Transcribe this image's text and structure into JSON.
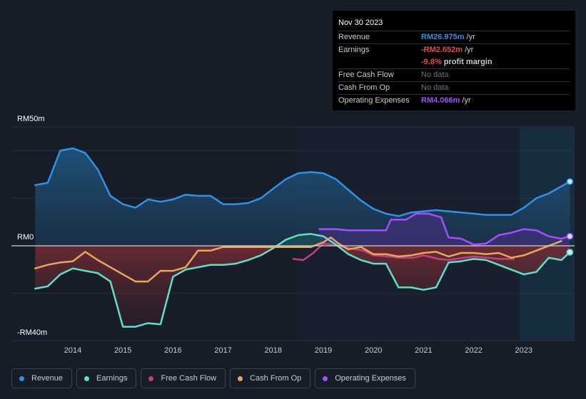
{
  "tooltip": {
    "date": "Nov 30 2023",
    "rows": [
      {
        "label": "Revenue",
        "value": "RM26.975m",
        "unit": "/yr",
        "color": "#2e93e6"
      },
      {
        "label": "Earnings",
        "value": "-RM2.652m",
        "unit": "/yr",
        "color": "#e8474e"
      },
      {
        "label": "",
        "value": "-9.8%",
        "unit": "profit margin",
        "color": "#e8474e"
      },
      {
        "label": "Free Cash Flow",
        "value": "No data",
        "unit": "",
        "color": "#6c727c"
      },
      {
        "label": "Cash From Op",
        "value": "No data",
        "unit": "",
        "color": "#6c727c"
      },
      {
        "label": "Operating Expenses",
        "value": "RM4.066m",
        "unit": "/yr",
        "color": "#a64dff"
      }
    ]
  },
  "legend": [
    {
      "label": "Revenue",
      "color": "#2e93e6"
    },
    {
      "label": "Earnings",
      "color": "#5fe0c8"
    },
    {
      "label": "Free Cash Flow",
      "color": "#c4407c"
    },
    {
      "label": "Cash From Op",
      "color": "#e8a85a"
    },
    {
      "label": "Operating Expenses",
      "color": "#a64dff"
    }
  ],
  "chart_data": {
    "type": "area",
    "x_ticks": [
      "2014",
      "2015",
      "2016",
      "2017",
      "2018",
      "2019",
      "2020",
      "2021",
      "2022",
      "2023"
    ],
    "y_tick_labels": [
      "RM50m",
      "RM0",
      "-RM40m"
    ],
    "ylim": [
      -40,
      50
    ],
    "grid": true,
    "past_data_shading_from": 2022.92,
    "series": [
      {
        "name": "Revenue",
        "color": "#2e93e6",
        "points": [
          [
            2013.25,
            25.5
          ],
          [
            2013.5,
            26.5
          ],
          [
            2013.75,
            40
          ],
          [
            2014.0,
            41
          ],
          [
            2014.25,
            39
          ],
          [
            2014.5,
            32
          ],
          [
            2014.75,
            21
          ],
          [
            2015.0,
            17.5
          ],
          [
            2015.25,
            16
          ],
          [
            2015.5,
            19.5
          ],
          [
            2015.75,
            18.5
          ],
          [
            2016.0,
            19.5
          ],
          [
            2016.25,
            21.5
          ],
          [
            2016.5,
            21
          ],
          [
            2016.75,
            21
          ],
          [
            2017.0,
            17.5
          ],
          [
            2017.25,
            17.5
          ],
          [
            2017.5,
            18
          ],
          [
            2017.75,
            20
          ],
          [
            2018.0,
            24
          ],
          [
            2018.25,
            28
          ],
          [
            2018.5,
            30.5
          ],
          [
            2018.75,
            31
          ],
          [
            2019.0,
            30.5
          ],
          [
            2019.25,
            28
          ],
          [
            2019.5,
            23.5
          ],
          [
            2019.75,
            19
          ],
          [
            2020.0,
            15.5
          ],
          [
            2020.25,
            13.5
          ],
          [
            2020.5,
            12.5
          ],
          [
            2020.75,
            14
          ],
          [
            2021.0,
            14.5
          ],
          [
            2021.25,
            15
          ],
          [
            2021.5,
            14.5
          ],
          [
            2021.75,
            14
          ],
          [
            2022.0,
            13.5
          ],
          [
            2022.25,
            13
          ],
          [
            2022.5,
            13
          ],
          [
            2022.75,
            13
          ],
          [
            2023.0,
            16
          ],
          [
            2023.25,
            20
          ],
          [
            2023.5,
            22
          ],
          [
            2023.75,
            25
          ],
          [
            2023.92,
            27
          ]
        ]
      },
      {
        "name": "Earnings",
        "color": "#5fe0c8",
        "points": [
          [
            2013.25,
            -18
          ],
          [
            2013.5,
            -17
          ],
          [
            2013.75,
            -12
          ],
          [
            2014.0,
            -9.5
          ],
          [
            2014.25,
            -10.5
          ],
          [
            2014.5,
            -11.5
          ],
          [
            2014.75,
            -15
          ],
          [
            2015.0,
            -34
          ],
          [
            2015.25,
            -34
          ],
          [
            2015.5,
            -32.5
          ],
          [
            2015.75,
            -33
          ],
          [
            2016.0,
            -13
          ],
          [
            2016.25,
            -10
          ],
          [
            2016.5,
            -9
          ],
          [
            2016.75,
            -8
          ],
          [
            2017.0,
            -8
          ],
          [
            2017.25,
            -7.5
          ],
          [
            2017.5,
            -6
          ],
          [
            2017.75,
            -4
          ],
          [
            2018.0,
            -1
          ],
          [
            2018.25,
            2.5
          ],
          [
            2018.5,
            4.5
          ],
          [
            2018.75,
            5
          ],
          [
            2019.0,
            4
          ],
          [
            2019.25,
            0.5
          ],
          [
            2019.5,
            -3.5
          ],
          [
            2019.75,
            -6
          ],
          [
            2020.0,
            -7.5
          ],
          [
            2020.25,
            -7.5
          ],
          [
            2020.5,
            -17.5
          ],
          [
            2020.75,
            -17.5
          ],
          [
            2021.0,
            -18.5
          ],
          [
            2021.25,
            -17.5
          ],
          [
            2021.5,
            -7
          ],
          [
            2021.75,
            -6.5
          ],
          [
            2022.0,
            -5.5
          ],
          [
            2022.25,
            -6
          ],
          [
            2022.5,
            -8
          ],
          [
            2022.75,
            -10
          ],
          [
            2023.0,
            -12
          ],
          [
            2023.25,
            -11
          ],
          [
            2023.5,
            -5
          ],
          [
            2023.75,
            -6
          ],
          [
            2023.92,
            -2.7
          ]
        ]
      },
      {
        "name": "Free Cash Flow",
        "color": "#c4407c",
        "points": [
          [
            2018.4,
            -5.5
          ],
          [
            2018.6,
            -6
          ],
          [
            2018.8,
            -3
          ],
          [
            2019.0,
            1
          ],
          [
            2019.3,
            0
          ],
          [
            2019.5,
            -1
          ],
          [
            2019.8,
            -2
          ],
          [
            2020.0,
            -4
          ],
          [
            2020.3,
            -4.5
          ],
          [
            2020.5,
            -5
          ],
          [
            2020.8,
            -5
          ],
          [
            2021.0,
            -4
          ],
          [
            2021.3,
            -5.5
          ],
          [
            2021.5,
            -6
          ],
          [
            2021.8,
            -5
          ],
          [
            2022.0,
            -4.5
          ],
          [
            2022.3,
            -5
          ],
          [
            2022.5,
            -5.5
          ],
          [
            2022.8,
            -5.5
          ]
        ]
      },
      {
        "name": "Cash From Op",
        "color": "#e8a85a",
        "points": [
          [
            2013.25,
            -9.5
          ],
          [
            2013.5,
            -8
          ],
          [
            2013.75,
            -7
          ],
          [
            2014.0,
            -6.5
          ],
          [
            2014.25,
            -2.5
          ],
          [
            2014.5,
            -6
          ],
          [
            2014.75,
            -9
          ],
          [
            2015.0,
            -12
          ],
          [
            2015.25,
            -15
          ],
          [
            2015.5,
            -15
          ],
          [
            2015.75,
            -10.5
          ],
          [
            2016.0,
            -10.5
          ],
          [
            2016.25,
            -9
          ],
          [
            2016.5,
            -2
          ],
          [
            2016.75,
            -2
          ],
          [
            2017.0,
            -0.5
          ],
          [
            2017.25,
            -0.5
          ],
          [
            2017.5,
            -0.5
          ],
          [
            2017.75,
            -0.5
          ],
          [
            2018.0,
            -0.5
          ],
          [
            2018.25,
            -0.5
          ],
          [
            2018.5,
            -0.5
          ],
          [
            2018.75,
            -0.5
          ],
          [
            2019.0,
            1.5
          ],
          [
            2019.15,
            3.5
          ],
          [
            2019.3,
            1
          ],
          [
            2019.5,
            -1.5
          ],
          [
            2019.75,
            -0.5
          ],
          [
            2020.0,
            -3.5
          ],
          [
            2020.25,
            -3.5
          ],
          [
            2020.5,
            -4.5
          ],
          [
            2020.75,
            -4
          ],
          [
            2021.0,
            -3
          ],
          [
            2021.25,
            -2.5
          ],
          [
            2021.5,
            -4.5
          ],
          [
            2021.75,
            -3
          ],
          [
            2022.0,
            -3
          ],
          [
            2022.25,
            -3.5
          ],
          [
            2022.5,
            -3
          ],
          [
            2022.75,
            -5
          ],
          [
            2023.0,
            -4
          ],
          [
            2023.25,
            -2
          ],
          [
            2023.5,
            0
          ],
          [
            2023.75,
            2
          ]
        ]
      },
      {
        "name": "Operating Expenses",
        "color": "#a64dff",
        "points": [
          [
            2018.92,
            7
          ],
          [
            2019.25,
            7
          ],
          [
            2019.5,
            6.5
          ],
          [
            2019.75,
            6.5
          ],
          [
            2020.0,
            6.5
          ],
          [
            2020.25,
            6.5
          ],
          [
            2020.35,
            11
          ],
          [
            2020.65,
            11
          ],
          [
            2020.85,
            13.5
          ],
          [
            2021.1,
            13.5
          ],
          [
            2021.35,
            12
          ],
          [
            2021.5,
            3.5
          ],
          [
            2021.75,
            3
          ],
          [
            2022.0,
            0.5
          ],
          [
            2022.25,
            1
          ],
          [
            2022.5,
            4.5
          ],
          [
            2022.75,
            5.5
          ],
          [
            2023.0,
            7
          ],
          [
            2023.25,
            6.5
          ],
          [
            2023.5,
            4
          ],
          [
            2023.75,
            3
          ],
          [
            2023.92,
            4
          ]
        ]
      }
    ]
  }
}
